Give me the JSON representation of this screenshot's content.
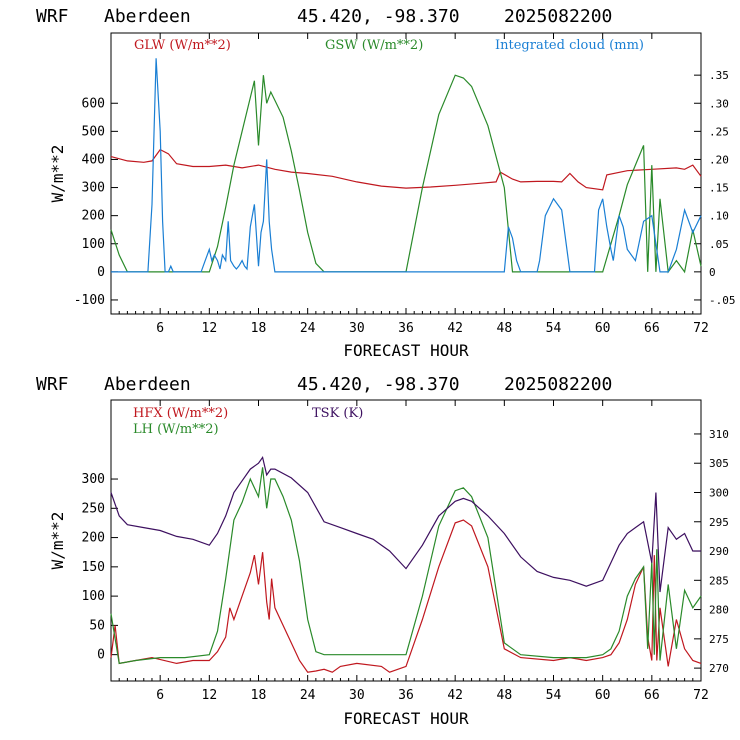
{
  "chart_data": [
    {
      "type": "line",
      "header": {
        "model": "WRF",
        "site": "Aberdeen",
        "coords": "45.420, -98.370",
        "run": "2025082200"
      },
      "xlabel": "FORECAST HOUR",
      "ylabel": "W/m**2",
      "xticks": [
        6,
        12,
        18,
        24,
        30,
        36,
        42,
        48,
        54,
        60,
        66,
        72
      ],
      "xlim": [
        0,
        72
      ],
      "ylim": [
        -150,
        850
      ],
      "yticks": [
        -100,
        0,
        100,
        200,
        300,
        400,
        500,
        600
      ],
      "y2lim": [
        -0.075,
        0.425
      ],
      "y2ticks": [
        -0.05,
        0,
        0.05,
        0.1,
        0.15,
        0.2,
        0.25,
        0.3,
        0.35
      ],
      "y2ticklabels": [
        "-.05",
        "0",
        ".05",
        ".10",
        ".15",
        ".20",
        ".25",
        ".30",
        ".35"
      ],
      "series": [
        {
          "name": "GLW (W/m**2)",
          "color": "#c0181f",
          "axis": "left",
          "x": [
            0,
            2,
            4,
            5,
            6,
            7,
            8,
            10,
            12,
            14,
            16,
            18,
            20,
            22,
            24,
            27,
            30,
            33,
            36,
            39,
            42,
            45,
            47,
            47.5,
            49,
            50,
            52,
            54,
            55,
            56,
            57,
            58,
            60,
            60.5,
            63,
            66,
            69,
            70,
            71,
            72
          ],
          "y": [
            410,
            395,
            390,
            395,
            435,
            420,
            385,
            375,
            375,
            380,
            370,
            380,
            365,
            355,
            350,
            340,
            320,
            305,
            298,
            302,
            308,
            315,
            320,
            355,
            330,
            320,
            322,
            322,
            320,
            350,
            320,
            300,
            292,
            345,
            360,
            365,
            370,
            365,
            380,
            340
          ]
        },
        {
          "name": "GSW (W/m**2)",
          "color": "#2a8a2a",
          "axis": "left",
          "x": [
            0,
            1,
            2,
            12,
            13,
            14,
            15,
            16,
            17,
            17.5,
            18,
            18.6,
            19,
            19.5,
            20,
            21,
            22,
            23,
            24,
            25,
            26,
            36,
            38,
            40,
            42,
            43,
            44,
            46,
            48,
            49,
            60,
            61,
            62,
            63,
            64,
            65,
            65.5,
            66,
            66.5,
            67,
            68,
            69,
            70,
            71,
            72
          ],
          "y": [
            150,
            60,
            0,
            0,
            90,
            230,
            380,
            500,
            620,
            680,
            450,
            700,
            600,
            640,
            610,
            550,
            430,
            290,
            140,
            30,
            0,
            0,
            300,
            560,
            700,
            690,
            660,
            520,
            300,
            0,
            0,
            100,
            200,
            310,
            380,
            450,
            0,
            380,
            0,
            260,
            0,
            40,
            0,
            150,
            20
          ]
        },
        {
          "name": "Integrated cloud (mm)",
          "color": "#1a7fd4",
          "axis": "right",
          "x": [
            0,
            1,
            4.5,
            5,
            5.5,
            6,
            6.3,
            6.6,
            7,
            7.3,
            7.6,
            8,
            11,
            11.5,
            12,
            12.3,
            12.6,
            13,
            13.3,
            13.6,
            14,
            14.3,
            14.6,
            15,
            15.3,
            15.6,
            16,
            16.3,
            16.6,
            17,
            17.5,
            18,
            18.3,
            18.6,
            19,
            19.3,
            19.6,
            20,
            21,
            48,
            48.5,
            49,
            49.5,
            50,
            52,
            52.3,
            53,
            54,
            55,
            56,
            57,
            59,
            59.5,
            60,
            60.5,
            61,
            61.3,
            62,
            62.5,
            63,
            64,
            65,
            66,
            67,
            68,
            69,
            70,
            71,
            72
          ],
          "y": [
            0,
            0,
            0,
            0.12,
            0.38,
            0.25,
            0.09,
            0,
            0,
            0.01,
            0,
            0,
            0,
            0.02,
            0.04,
            0.02,
            0.03,
            0.02,
            0.005,
            0.03,
            0.02,
            0.09,
            0.02,
            0.01,
            0.005,
            0.01,
            0.02,
            0.01,
            0.005,
            0.08,
            0.12,
            0.01,
            0.07,
            0.09,
            0.2,
            0.09,
            0.04,
            0,
            0,
            0,
            0.08,
            0.06,
            0.02,
            0,
            0,
            0.02,
            0.1,
            0.13,
            0.11,
            0,
            0,
            0,
            0.11,
            0.13,
            0.08,
            0.04,
            0.02,
            0.1,
            0.08,
            0.04,
            0.02,
            0.09,
            0.1,
            0,
            0,
            0.04,
            0.11,
            0.07,
            0.1
          ]
        }
      ]
    },
    {
      "type": "line",
      "header": {
        "model": "WRF",
        "site": "Aberdeen",
        "coords": "45.420, -98.370",
        "run": "2025082200"
      },
      "xlabel": "FORECAST HOUR",
      "ylabel": "W/m**2",
      "xticks": [
        6,
        12,
        18,
        24,
        30,
        36,
        42,
        48,
        54,
        60,
        66,
        72
      ],
      "xlim": [
        0,
        72
      ],
      "ylim": [
        -45,
        435
      ],
      "yticks": [
        0,
        50,
        100,
        150,
        200,
        250,
        300
      ],
      "y2lim": [
        267.8,
        315.8
      ],
      "y2ticks": [
        270,
        275,
        280,
        285,
        290,
        295,
        300,
        305,
        310
      ],
      "series": [
        {
          "name": "HFX (W/m**2)",
          "color": "#c0181f",
          "axis": "left",
          "x": [
            0,
            0.5,
            1,
            3,
            5,
            8,
            10,
            12,
            13,
            14,
            14.5,
            15,
            16,
            17,
            17.5,
            18,
            18.5,
            19,
            19.3,
            19.6,
            20,
            21,
            22,
            23,
            24,
            25,
            26,
            27,
            28,
            30,
            33,
            34,
            35,
            36,
            38,
            40,
            42,
            43,
            44,
            46,
            48,
            50,
            54,
            56,
            58,
            60,
            61,
            62,
            63,
            64,
            65,
            65.5,
            66,
            66.3,
            66.6,
            67,
            68,
            69,
            70,
            71,
            72
          ],
          "y": [
            -5,
            50,
            -15,
            -10,
            -5,
            -15,
            -10,
            -10,
            5,
            30,
            80,
            60,
            100,
            140,
            170,
            120,
            175,
            90,
            60,
            130,
            80,
            50,
            20,
            -10,
            -30,
            -28,
            -25,
            -30,
            -20,
            -15,
            -20,
            -30,
            -25,
            -20,
            60,
            150,
            225,
            230,
            220,
            150,
            10,
            -5,
            -10,
            -5,
            -10,
            -5,
            0,
            20,
            60,
            120,
            150,
            30,
            -10,
            170,
            -10,
            80,
            -20,
            60,
            10,
            -10,
            -15
          ]
        },
        {
          "name": "LH (W/m**2)",
          "color": "#2a8a2a",
          "axis": "left",
          "x": [
            0,
            1,
            3,
            6,
            9,
            12,
            13,
            14,
            15,
            16,
            17,
            18,
            18.5,
            19,
            19.5,
            20,
            21,
            22,
            23,
            24,
            25,
            26,
            30,
            36,
            38,
            40,
            42,
            43,
            44,
            46,
            48,
            50,
            54,
            58,
            60,
            61,
            62,
            63,
            64,
            65,
            65.5,
            66,
            66.3,
            66.6,
            67,
            68,
            69,
            70,
            71,
            72
          ],
          "y": [
            70,
            -15,
            -10,
            -5,
            -5,
            0,
            40,
            130,
            230,
            260,
            300,
            270,
            320,
            250,
            300,
            300,
            270,
            230,
            160,
            60,
            5,
            0,
            0,
            0,
            100,
            220,
            280,
            285,
            270,
            200,
            20,
            0,
            -5,
            -5,
            0,
            10,
            40,
            100,
            130,
            150,
            10,
            160,
            0,
            180,
            -10,
            120,
            10,
            110,
            80,
            100
          ]
        },
        {
          "name": "TSK (K)",
          "color": "#3d1060",
          "axis": "right",
          "x": [
            0,
            1,
            2,
            4,
            6,
            8,
            10,
            12,
            13,
            14,
            15,
            16,
            17,
            18,
            18.5,
            19,
            19.5,
            20,
            22,
            24,
            26,
            28,
            30,
            32,
            34,
            36,
            38,
            40,
            42,
            43,
            44,
            46,
            48,
            50,
            52,
            54,
            56,
            58,
            60,
            61,
            62,
            63,
            64,
            65,
            66,
            66.5,
            67,
            68,
            69,
            70,
            71,
            72
          ],
          "y": [
            300,
            296,
            294.5,
            294,
            293.5,
            292.5,
            292,
            291,
            293,
            296,
            300,
            302,
            304,
            305,
            306,
            303,
            304,
            304,
            302.5,
            300,
            295,
            294,
            293,
            292,
            290,
            287,
            291,
            296,
            298.5,
            299,
            298.5,
            296,
            293,
            289,
            286.5,
            285.5,
            285,
            284,
            285,
            288,
            291,
            293,
            294,
            295,
            288,
            300,
            283,
            294,
            292,
            293,
            290,
            290
          ]
        }
      ]
    }
  ]
}
